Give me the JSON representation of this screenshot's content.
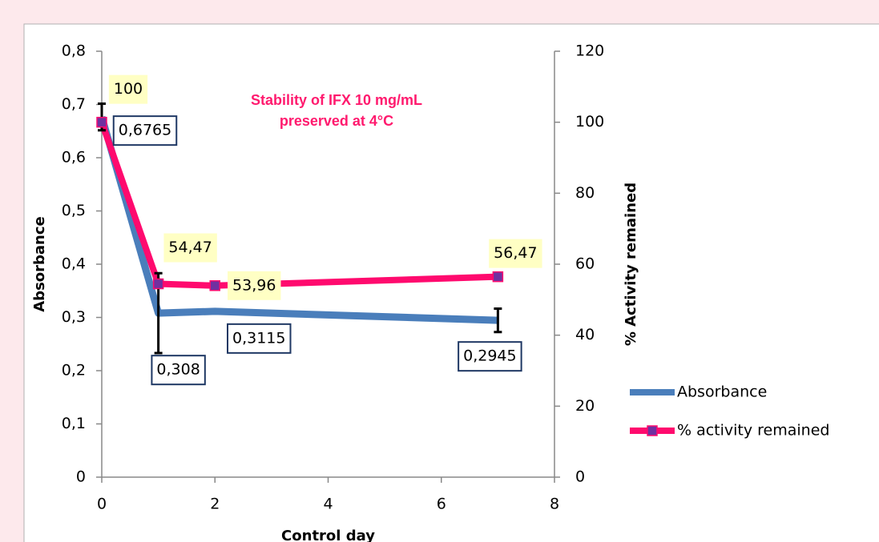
{
  "chart_data": {
    "type": "line",
    "title": "Stability of IFX 10 mg/mL preserved at 4°C",
    "xlabel": "Control day",
    "ylabel": "Absorbance",
    "y2label": "% Activity remained",
    "x": [
      0,
      1,
      2,
      7
    ],
    "series": [
      {
        "name": "Absorbance",
        "color": "#4a7ebb",
        "values": [
          0.6765,
          0.308,
          0.3115,
          0.2945
        ],
        "value_labels": [
          "0,6765",
          "0,308",
          "0,3115",
          "0,2945"
        ],
        "errors": [
          0.025,
          0.075,
          null,
          0.022
        ]
      },
      {
        "name": "% activity remained",
        "color": "#ff0a6e",
        "axis": "y2",
        "marker_color": "#7030a0",
        "values": [
          100,
          54.47,
          53.96,
          56.47
        ],
        "value_labels": [
          "100",
          "54,47",
          "53,96",
          "56,47"
        ]
      }
    ],
    "xlim": [
      0,
      8
    ],
    "xticks": [
      0,
      2,
      4,
      6,
      8
    ],
    "ylim": [
      0,
      0.8
    ],
    "yticks": [
      0,
      {
        "value": 0.1,
        "label": "0,1"
      },
      {
        "value": 0.2,
        "label": "0,2"
      },
      {
        "value": 0.3,
        "label": "0,3"
      },
      {
        "value": 0.4,
        "label": "0,4"
      },
      {
        "value": 0.5,
        "label": "0,5"
      },
      {
        "value": 0.6,
        "label": "0,6"
      },
      {
        "value": 0.7,
        "label": "0,7"
      },
      {
        "value": 0.8,
        "label": "0,8"
      }
    ],
    "y2lim": [
      0,
      120
    ],
    "y2ticks": [
      0,
      20,
      40,
      60,
      80,
      100,
      120
    ],
    "grid": false,
    "legend": "right"
  }
}
